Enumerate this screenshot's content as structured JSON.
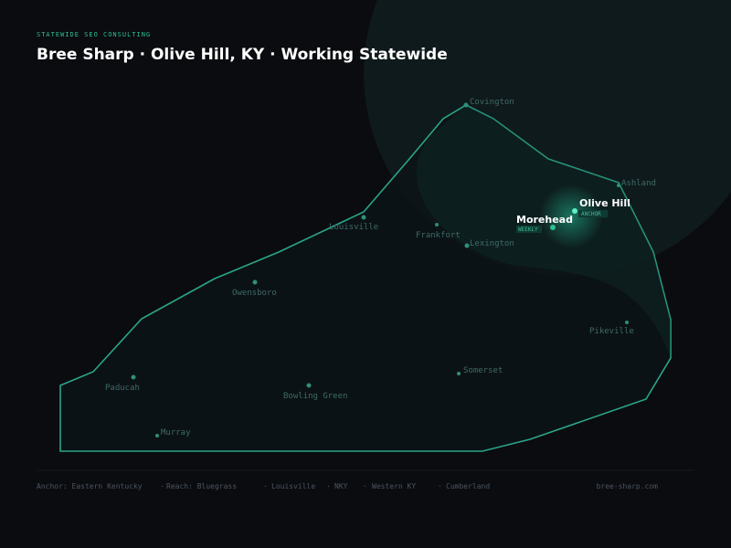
{
  "header": {
    "eyebrow": "STATEWIDE SEO CONSULTING",
    "title": "Bree Sharp · Olive Hill, KY · Working Statewide"
  },
  "map": {
    "cities": [
      {
        "label": "Covington"
      },
      {
        "label": "Ashland"
      },
      {
        "label": "Olive Hill",
        "badge": "ANCHOR"
      },
      {
        "label": "Morehead",
        "badge": "WEEKLY"
      },
      {
        "label": "Louisville"
      },
      {
        "label": "Frankfort"
      },
      {
        "label": "Lexington"
      },
      {
        "label": "Owensboro"
      },
      {
        "label": "Pikeville"
      },
      {
        "label": "Paducah"
      },
      {
        "label": "Bowling Green"
      },
      {
        "label": "Somerset"
      },
      {
        "label": "Murray"
      }
    ]
  },
  "footer": {
    "regions": [
      "Anchor: Eastern Kentucky",
      "Reach: Bluegrass",
      "Louisville",
      "NKY",
      "Western KY",
      "Cumberland"
    ],
    "site": "bree-sharp.com"
  }
}
